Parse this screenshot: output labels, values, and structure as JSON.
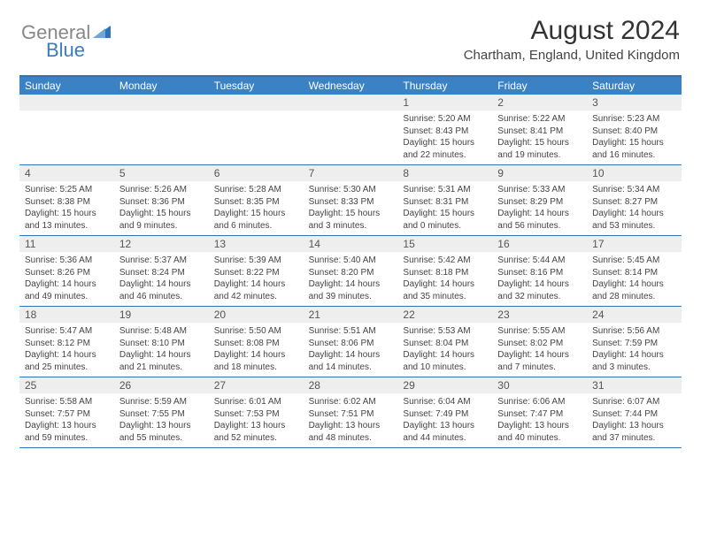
{
  "logo": {
    "general": "General",
    "blue": "Blue"
  },
  "header": {
    "month": "August 2024",
    "location": "Chartham, England, United Kingdom"
  },
  "colors": {
    "brand_blue": "#3b82c4",
    "brand_blue_dark": "#2d71b8",
    "logo_gray": "#888888",
    "logo_blue": "#3b7bbf",
    "daynum_bg": "#eeeeee",
    "text_dark": "#333333",
    "text_body": "#444444"
  },
  "weekdays": [
    "Sunday",
    "Monday",
    "Tuesday",
    "Wednesday",
    "Thursday",
    "Friday",
    "Saturday"
  ],
  "weeks": [
    [
      {
        "n": "",
        "sr": "",
        "ss": "",
        "dl": ""
      },
      {
        "n": "",
        "sr": "",
        "ss": "",
        "dl": ""
      },
      {
        "n": "",
        "sr": "",
        "ss": "",
        "dl": ""
      },
      {
        "n": "",
        "sr": "",
        "ss": "",
        "dl": ""
      },
      {
        "n": "1",
        "sr": "Sunrise: 5:20 AM",
        "ss": "Sunset: 8:43 PM",
        "dl": "Daylight: 15 hours and 22 minutes."
      },
      {
        "n": "2",
        "sr": "Sunrise: 5:22 AM",
        "ss": "Sunset: 8:41 PM",
        "dl": "Daylight: 15 hours and 19 minutes."
      },
      {
        "n": "3",
        "sr": "Sunrise: 5:23 AM",
        "ss": "Sunset: 8:40 PM",
        "dl": "Daylight: 15 hours and 16 minutes."
      }
    ],
    [
      {
        "n": "4",
        "sr": "Sunrise: 5:25 AM",
        "ss": "Sunset: 8:38 PM",
        "dl": "Daylight: 15 hours and 13 minutes."
      },
      {
        "n": "5",
        "sr": "Sunrise: 5:26 AM",
        "ss": "Sunset: 8:36 PM",
        "dl": "Daylight: 15 hours and 9 minutes."
      },
      {
        "n": "6",
        "sr": "Sunrise: 5:28 AM",
        "ss": "Sunset: 8:35 PM",
        "dl": "Daylight: 15 hours and 6 minutes."
      },
      {
        "n": "7",
        "sr": "Sunrise: 5:30 AM",
        "ss": "Sunset: 8:33 PM",
        "dl": "Daylight: 15 hours and 3 minutes."
      },
      {
        "n": "8",
        "sr": "Sunrise: 5:31 AM",
        "ss": "Sunset: 8:31 PM",
        "dl": "Daylight: 15 hours and 0 minutes."
      },
      {
        "n": "9",
        "sr": "Sunrise: 5:33 AM",
        "ss": "Sunset: 8:29 PM",
        "dl": "Daylight: 14 hours and 56 minutes."
      },
      {
        "n": "10",
        "sr": "Sunrise: 5:34 AM",
        "ss": "Sunset: 8:27 PM",
        "dl": "Daylight: 14 hours and 53 minutes."
      }
    ],
    [
      {
        "n": "11",
        "sr": "Sunrise: 5:36 AM",
        "ss": "Sunset: 8:26 PM",
        "dl": "Daylight: 14 hours and 49 minutes."
      },
      {
        "n": "12",
        "sr": "Sunrise: 5:37 AM",
        "ss": "Sunset: 8:24 PM",
        "dl": "Daylight: 14 hours and 46 minutes."
      },
      {
        "n": "13",
        "sr": "Sunrise: 5:39 AM",
        "ss": "Sunset: 8:22 PM",
        "dl": "Daylight: 14 hours and 42 minutes."
      },
      {
        "n": "14",
        "sr": "Sunrise: 5:40 AM",
        "ss": "Sunset: 8:20 PM",
        "dl": "Daylight: 14 hours and 39 minutes."
      },
      {
        "n": "15",
        "sr": "Sunrise: 5:42 AM",
        "ss": "Sunset: 8:18 PM",
        "dl": "Daylight: 14 hours and 35 minutes."
      },
      {
        "n": "16",
        "sr": "Sunrise: 5:44 AM",
        "ss": "Sunset: 8:16 PM",
        "dl": "Daylight: 14 hours and 32 minutes."
      },
      {
        "n": "17",
        "sr": "Sunrise: 5:45 AM",
        "ss": "Sunset: 8:14 PM",
        "dl": "Daylight: 14 hours and 28 minutes."
      }
    ],
    [
      {
        "n": "18",
        "sr": "Sunrise: 5:47 AM",
        "ss": "Sunset: 8:12 PM",
        "dl": "Daylight: 14 hours and 25 minutes."
      },
      {
        "n": "19",
        "sr": "Sunrise: 5:48 AM",
        "ss": "Sunset: 8:10 PM",
        "dl": "Daylight: 14 hours and 21 minutes."
      },
      {
        "n": "20",
        "sr": "Sunrise: 5:50 AM",
        "ss": "Sunset: 8:08 PM",
        "dl": "Daylight: 14 hours and 18 minutes."
      },
      {
        "n": "21",
        "sr": "Sunrise: 5:51 AM",
        "ss": "Sunset: 8:06 PM",
        "dl": "Daylight: 14 hours and 14 minutes."
      },
      {
        "n": "22",
        "sr": "Sunrise: 5:53 AM",
        "ss": "Sunset: 8:04 PM",
        "dl": "Daylight: 14 hours and 10 minutes."
      },
      {
        "n": "23",
        "sr": "Sunrise: 5:55 AM",
        "ss": "Sunset: 8:02 PM",
        "dl": "Daylight: 14 hours and 7 minutes."
      },
      {
        "n": "24",
        "sr": "Sunrise: 5:56 AM",
        "ss": "Sunset: 7:59 PM",
        "dl": "Daylight: 14 hours and 3 minutes."
      }
    ],
    [
      {
        "n": "25",
        "sr": "Sunrise: 5:58 AM",
        "ss": "Sunset: 7:57 PM",
        "dl": "Daylight: 13 hours and 59 minutes."
      },
      {
        "n": "26",
        "sr": "Sunrise: 5:59 AM",
        "ss": "Sunset: 7:55 PM",
        "dl": "Daylight: 13 hours and 55 minutes."
      },
      {
        "n": "27",
        "sr": "Sunrise: 6:01 AM",
        "ss": "Sunset: 7:53 PM",
        "dl": "Daylight: 13 hours and 52 minutes."
      },
      {
        "n": "28",
        "sr": "Sunrise: 6:02 AM",
        "ss": "Sunset: 7:51 PM",
        "dl": "Daylight: 13 hours and 48 minutes."
      },
      {
        "n": "29",
        "sr": "Sunrise: 6:04 AM",
        "ss": "Sunset: 7:49 PM",
        "dl": "Daylight: 13 hours and 44 minutes."
      },
      {
        "n": "30",
        "sr": "Sunrise: 6:06 AM",
        "ss": "Sunset: 7:47 PM",
        "dl": "Daylight: 13 hours and 40 minutes."
      },
      {
        "n": "31",
        "sr": "Sunrise: 6:07 AM",
        "ss": "Sunset: 7:44 PM",
        "dl": "Daylight: 13 hours and 37 minutes."
      }
    ]
  ]
}
